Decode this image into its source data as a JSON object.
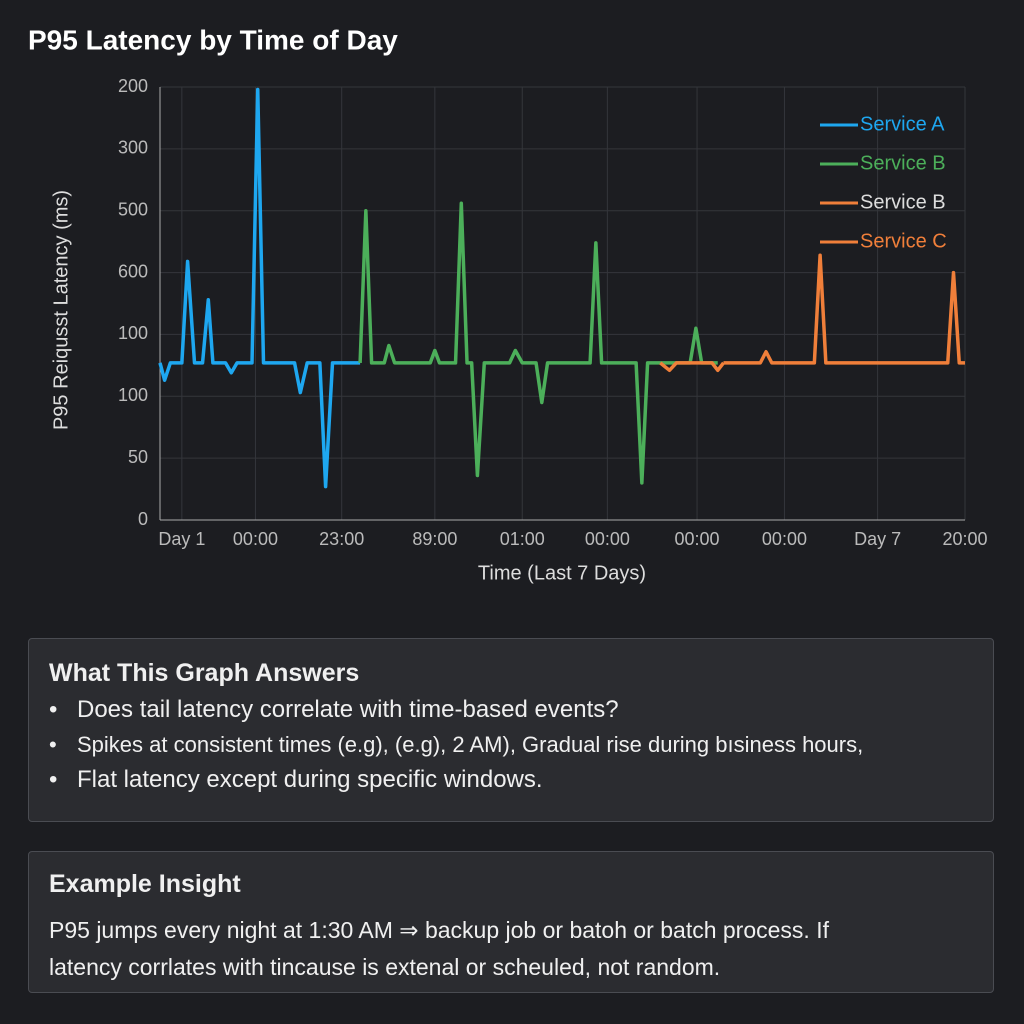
{
  "chart_data": {
    "type": "line",
    "title": "P95 Latency by Time of Day",
    "x_label": "Time (Last 7 Days)",
    "y_label": "P95 Reiqusst Latency (ms)",
    "xlim": [
      0,
      7
    ],
    "ylim": [
      0,
      350
    ],
    "xticks": [
      {
        "value": 0.19,
        "label": "Day 1"
      },
      {
        "value": 0.83,
        "label": "00:00"
      },
      {
        "value": 1.58,
        "label": "23:00"
      },
      {
        "value": 2.39,
        "label": "89:00"
      },
      {
        "value": 3.15,
        "label": "01:00"
      },
      {
        "value": 3.89,
        "label": "00:00"
      },
      {
        "value": 4.67,
        "label": "00:00"
      },
      {
        "value": 5.43,
        "label": "00:00"
      },
      {
        "value": 6.24,
        "label": "Day 7"
      },
      {
        "value": 7.0,
        "label": "20:00"
      }
    ],
    "yticks": [
      0,
      50,
      100,
      {
        "value": 150,
        "label": "100"
      },
      {
        "value": 200,
        "label": "600"
      },
      {
        "value": 250,
        "label": "500"
      },
      {
        "value": 300,
        "label": "300"
      },
      {
        "value": 350,
        "label": "200"
      }
    ],
    "grid": true,
    "legend": "upper right",
    "series": [
      {
        "name": "Service A",
        "color": "#1ea7f0",
        "x": [
          0,
          0.04,
          0.09,
          0.19,
          0.24,
          0.3,
          0.37,
          0.42,
          0.46,
          0.57,
          0.62,
          0.67,
          0.8,
          0.85,
          0.9,
          1.17,
          1.22,
          1.28,
          1.39,
          1.44,
          1.5,
          1.74
        ],
        "values": [
          127,
          113,
          127,
          127,
          209,
          127,
          127,
          178,
          127,
          127,
          119,
          127,
          127,
          348,
          127,
          127,
          103,
          127,
          127,
          27,
          127,
          127
        ]
      },
      {
        "name": "Service B",
        "color": "#4caf5a",
        "x": [
          1.74,
          1.79,
          1.84,
          1.95,
          1.99,
          2.04,
          2.35,
          2.39,
          2.43,
          2.57,
          2.62,
          2.67,
          2.71,
          2.76,
          2.82,
          3.04,
          3.09,
          3.15,
          3.27,
          3.32,
          3.37,
          3.74,
          3.79,
          3.84,
          4.14,
          4.19,
          4.24,
          4.61,
          4.66,
          4.71,
          4.85
        ],
        "values": [
          127,
          250,
          127,
          127,
          141,
          127,
          127,
          137,
          127,
          127,
          256,
          127,
          127,
          36,
          127,
          127,
          137,
          127,
          127,
          95,
          127,
          127,
          224,
          127,
          127,
          30,
          127,
          127,
          155,
          127,
          127
        ]
      },
      {
        "name": "Service B",
        "color": "#f07f3a",
        "x": [
          4.35,
          4.43,
          4.49,
          4.8,
          4.85,
          4.9
        ],
        "values": [
          127,
          121,
          127,
          127,
          121,
          127
        ]
      },
      {
        "name": "Service C",
        "color": "#f07f3a",
        "x": [
          4.9,
          5.22,
          5.27,
          5.32,
          5.69,
          5.74,
          5.79,
          6.85,
          6.9,
          6.95,
          7.0
        ],
        "values": [
          127,
          127,
          136,
          127,
          127,
          214,
          127,
          127,
          200,
          127,
          127
        ]
      }
    ]
  },
  "panels": [
    {
      "title": "What This Graph Answers",
      "bullets": [
        "Does tail latency correlate with time-based events?",
        "Spikes at consistent times (e.g), (e.g), 2 AM), Gradual rise during bısiness hours,",
        "Flat latency except during specific windows."
      ]
    },
    {
      "title": "Example Insight",
      "lines": [
        "P95 jumps every night at 1:30 AM  ⇒ backup job or batoh or batch process. If",
        "latency corrlates with tincause is extenal or scheuled, not random."
      ]
    }
  ]
}
